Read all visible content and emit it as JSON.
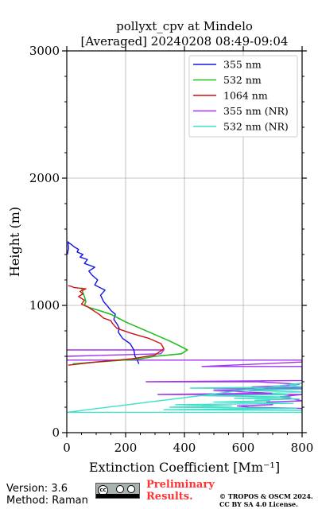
{
  "chart_data": {
    "type": "line",
    "title": "pollyxt_cpv at Mindelo",
    "subtitle": "[Averaged] 20240208 08:49-09:04",
    "xlabel": "Extinction Coefficient [Mm⁻¹]",
    "ylabel": "Height (m)",
    "xlim": [
      0,
      800
    ],
    "ylim": [
      0,
      3000
    ],
    "xticks": [
      0,
      200,
      400,
      600,
      800
    ],
    "yticks": [
      0,
      1000,
      2000,
      3000
    ],
    "grid": true,
    "legend_position": "top-right",
    "series": [
      {
        "name": "355 nm",
        "color": "#1414e6",
        "x": [
          245,
          240,
          232,
          228,
          215,
          190,
          175,
          178,
          172,
          160,
          165,
          150,
          140,
          125,
          115,
          130,
          95,
          105,
          85,
          75,
          95,
          60,
          70,
          45,
          55,
          35,
          40,
          25,
          15,
          8,
          4,
          6,
          2
        ],
        "y": [
          540,
          570,
          600,
          650,
          700,
          740,
          790,
          820,
          850,
          890,
          930,
          960,
          990,
          1030,
          1080,
          1120,
          1160,
          1200,
          1240,
          1270,
          1300,
          1330,
          1360,
          1380,
          1400,
          1420,
          1440,
          1460,
          1480,
          1490,
          1500,
          1450,
          1400
        ]
      },
      {
        "name": "532 nm",
        "color": "#22bb22",
        "x": [
          20,
          130,
          250,
          300,
          390,
          410,
          385,
          350,
          290,
          240,
          200,
          175,
          150,
          110,
          80,
          60,
          65,
          60,
          55,
          50
        ],
        "y": [
          540,
          560,
          580,
          600,
          620,
          650,
          680,
          720,
          780,
          830,
          870,
          900,
          930,
          960,
          980,
          1000,
          1030,
          1070,
          1100,
          1140
        ],
        "width": 1.6
      },
      {
        "name": "1064 nm",
        "color": "#cc1111",
        "x": [
          5,
          100,
          220,
          300,
          330,
          320,
          280,
          220,
          170,
          155,
          150,
          125,
          110,
          90,
          70,
          50,
          60,
          40,
          55,
          45,
          65,
          25,
          15,
          5
        ],
        "y": [
          530,
          555,
          580,
          610,
          660,
          700,
          740,
          780,
          820,
          860,
          880,
          900,
          930,
          960,
          990,
          1010,
          1040,
          1070,
          1090,
          1110,
          1130,
          1140,
          1150,
          1155
        ]
      },
      {
        "name": "355 nm (NR)",
        "color": "#a033ee",
        "x": [
          0,
          330,
          320,
          0,
          0,
          800,
          800,
          460,
          800,
          800,
          270,
          650,
          790,
          760,
          630,
          800,
          500,
          720,
          500,
          700,
          310,
          800,
          720,
          760,
          800,
          680,
          700,
          580,
          620,
          800,
          800
        ],
        "y": [
          650,
          650,
          620,
          600,
          570,
          570,
          555,
          520,
          520,
          410,
          400,
          400,
          380,
          370,
          360,
          350,
          345,
          340,
          330,
          310,
          300,
          300,
          280,
          270,
          250,
          240,
          220,
          210,
          200,
          190,
          180
        ]
      },
      {
        "name": "532 nm (NR)",
        "color": "#40e0c8",
        "x": [
          0,
          800,
          800,
          330,
          780,
          350,
          560,
          370,
          770,
          500,
          690,
          640,
          790,
          570,
          760,
          460,
          750,
          700,
          800,
          620,
          800,
          420,
          800,
          760,
          800,
          0
        ],
        "y": [
          160,
          160,
          175,
          180,
          190,
          200,
          210,
          220,
          230,
          240,
          250,
          255,
          265,
          270,
          280,
          290,
          300,
          310,
          320,
          330,
          340,
          350,
          360,
          370,
          390,
          160
        ]
      }
    ]
  },
  "footer": {
    "version": "Version: 3.6",
    "method": "Method: Raman",
    "preliminary_line1": "Preliminary",
    "preliminary_line2": "Results.",
    "copyright_line1": "© TROPOS & OSCM 2024.",
    "copyright_line2": "CC BY SA 4.0 License."
  }
}
